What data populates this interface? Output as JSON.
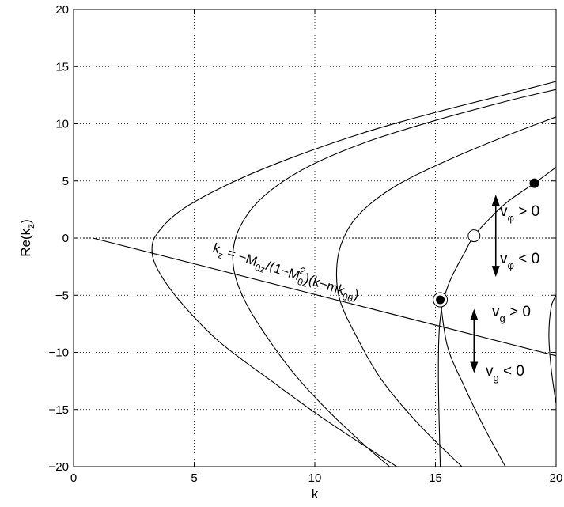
{
  "chart_data": {
    "type": "line",
    "xlabel": "k",
    "ylabel": "Re(k_z)",
    "xlim": [
      0,
      20
    ],
    "ylim": [
      -20,
      20
    ],
    "xticks": [
      "0",
      "5",
      "10",
      "15",
      "20"
    ],
    "yticks": [
      "-20",
      "-15",
      "-10",
      "-5",
      "0",
      "5",
      "10",
      "15",
      "20"
    ],
    "grid": true,
    "series": [
      {
        "x": [
          13.4,
          10.5,
          8.2,
          6.0,
          4.4,
          3.5,
          3.25,
          3.5,
          4.5,
          6.5,
          9.0,
          12.0,
          15.0,
          18.0,
          20.0
        ],
        "y": [
          -20.0,
          -16.0,
          -12.5,
          -9.0,
          -5.5,
          -2.8,
          -1.0,
          0.5,
          2.5,
          4.8,
          7.0,
          9.2,
          11.0,
          12.6,
          13.7
        ]
      },
      {
        "x": [
          13.1,
          12.0,
          10.5,
          9.0,
          7.5,
          6.8,
          6.6,
          6.9,
          7.8,
          9.5,
          12.0,
          15.0,
          18.0,
          20.0
        ],
        "y": [
          -20.0,
          -18.0,
          -15.0,
          -11.5,
          -7.0,
          -4.0,
          -1.5,
          1.0,
          3.5,
          6.0,
          8.3,
          10.3,
          12.0,
          13.0
        ]
      },
      {
        "x": [
          16.1,
          14.4,
          12.8,
          11.7,
          11.05,
          10.9,
          11.1,
          11.8,
          13.3,
          15.5,
          18.0,
          20.0
        ],
        "y": [
          -20.0,
          -16.5,
          -12.5,
          -8.5,
          -5.5,
          -3.0,
          -0.5,
          2.0,
          4.5,
          6.8,
          9.0,
          10.6
        ]
      },
      {
        "x": [
          15.2,
          15.12,
          15.2,
          15.55,
          16.2,
          16.6,
          17.2,
          18.0,
          19.1,
          20.0
        ],
        "y": [
          -20.0,
          -12.0,
          -7.0,
          -4.0,
          -1.3,
          0.2,
          1.6,
          3.2,
          4.8,
          6.2
        ]
      },
      {
        "x": [
          17.9,
          17.0,
          16.2,
          15.5,
          15.2
        ],
        "y": [
          -20.0,
          -16.5,
          -13.0,
          -9.5,
          -5.4
        ]
      },
      {
        "x": [
          20.0,
          19.8,
          19.7,
          19.8,
          20.0
        ],
        "y": [
          -14.5,
          -11.5,
          -8.5,
          -6.0,
          -5.0
        ]
      },
      {
        "x": [
          0.8,
          20.0
        ],
        "y": [
          0.0,
          -10.3
        ]
      }
    ],
    "markers": [
      {
        "kind": "filled",
        "x": 19.1,
        "y": 4.8
      },
      {
        "kind": "open",
        "x": 16.6,
        "y": 0.2
      },
      {
        "kind": "filled-ring",
        "x": 15.2,
        "y": -5.4
      }
    ],
    "arrows": [
      {
        "x": 17.5,
        "y0": 3.8,
        "y1": -3.4
      },
      {
        "x": 16.6,
        "y0": -6.2,
        "y1": -11.8
      }
    ],
    "annotations": {
      "line_label": {
        "parts": [
          "k",
          "z",
          " = −M",
          "0z",
          "/(1−M",
          "0z",
          "2",
          ")(k−mk",
          "0θ",
          ")"
        ]
      },
      "vphi_pos": {
        "parts": [
          "v",
          "φ",
          " > 0"
        ]
      },
      "vphi_neg": {
        "parts": [
          "v",
          "φ",
          " < 0"
        ]
      },
      "vg_pos": {
        "parts": [
          "v",
          "g",
          " > 0"
        ]
      },
      "vg_neg": {
        "parts": [
          "v",
          "g",
          " < 0"
        ]
      }
    }
  }
}
